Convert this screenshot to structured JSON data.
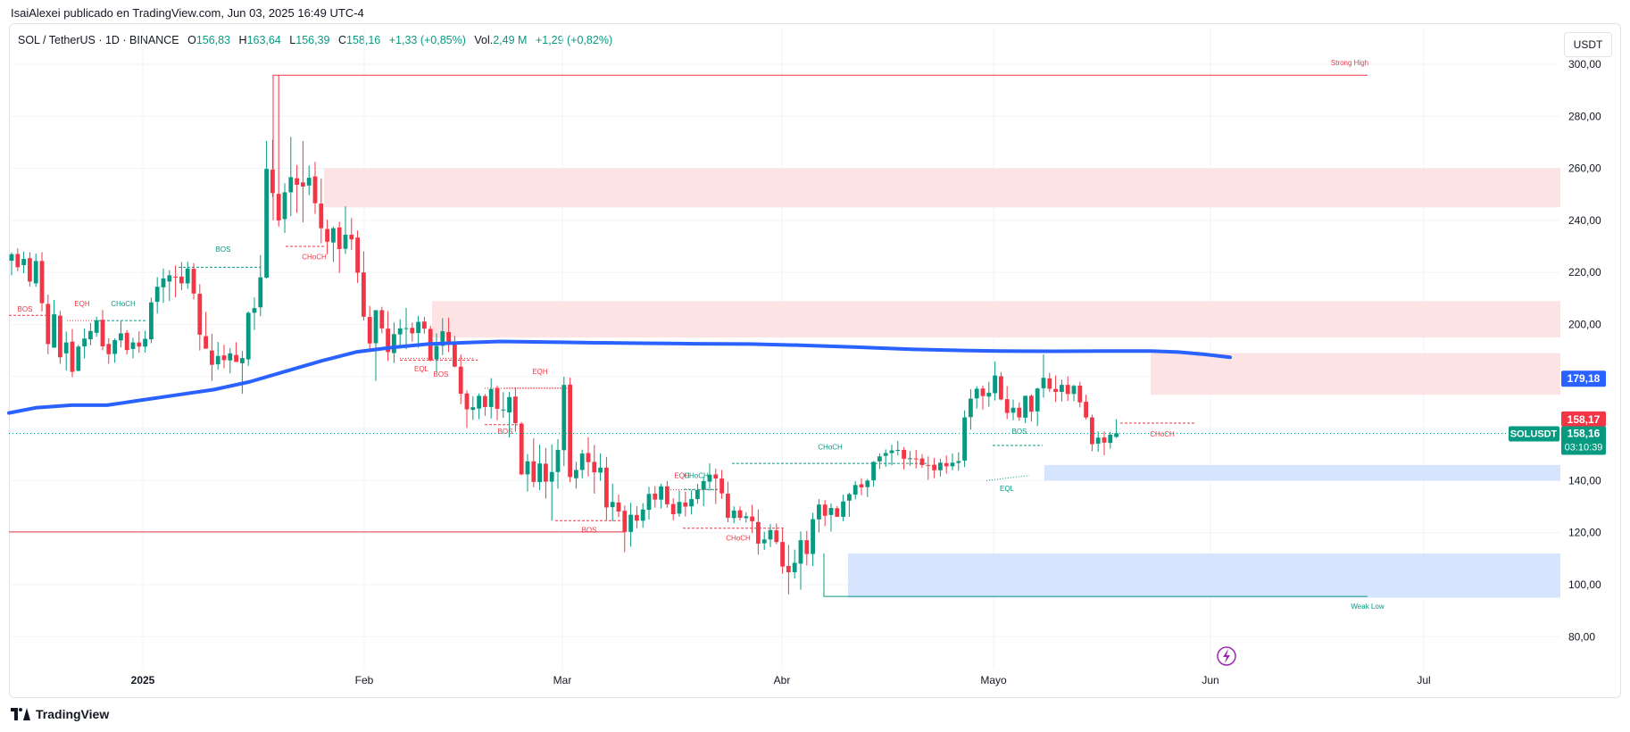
{
  "header": {
    "published": "IsaiAlexei publicado en TradingView.com, Jun 03, 2025 16:49 UTC-4"
  },
  "legend": {
    "symbol": "SOL / TetherUS · 1D · BINANCE",
    "o_label": "O",
    "o_value": "156,83",
    "h_label": "H",
    "h_value": "163,64",
    "l_label": "L",
    "l_value": "156,39",
    "c_label": "C",
    "c_value": "158,16",
    "change": "+1,33 (+0,85%)",
    "vol_label": "Vol.",
    "vol_value": "2,49 M",
    "vol_change": "+1,29 (+0,82%)"
  },
  "currency_button": "USDT",
  "brand": "TradingView",
  "colors": {
    "up": "#089981",
    "down": "#f23645",
    "ma": "#2962ff",
    "supply": "#fde3e4",
    "demand": "#d6e4fd",
    "grid": "#f0f3fa"
  },
  "chart_data": {
    "type": "candlestick",
    "title": "SOL / TetherUS · 1D · BINANCE",
    "yticks": [
      "300,00",
      "280,00",
      "260,00",
      "240,00",
      "220,00",
      "200,00",
      "180,00",
      "160,00",
      "140,00",
      "120,00",
      "100,00",
      "80,00"
    ],
    "xticks": [
      "2025",
      "Feb",
      "Mar",
      "Abr",
      "Mayo",
      "Jun",
      "Jul"
    ],
    "ylim": [
      75,
      312
    ],
    "grid": true,
    "last_price_tag": {
      "symbol": "SOLUSDT",
      "price": "158,16",
      "countdown": "03:10:39"
    },
    "ma_tag": "179,18",
    "prev_tag": "158,17",
    "zones": [
      {
        "kind": "supply",
        "from": 245,
        "to": 260
      },
      {
        "kind": "supply",
        "from": 195,
        "to": 209
      },
      {
        "kind": "supply",
        "from": 173,
        "to": 189
      },
      {
        "kind": "demand",
        "from": 140,
        "to": 146
      },
      {
        "kind": "demand",
        "from": 95,
        "to": 112
      }
    ],
    "labels": {
      "strong_high": "Strong High",
      "weak_low": "Weak Low",
      "bos": "BOS",
      "choch": "CHoCH",
      "eqh": "EQH",
      "eql": "EQL"
    },
    "candles": [
      [
        224.5,
        227.7,
        218.9,
        227.0
      ],
      [
        227.1,
        229.3,
        220.5,
        222.0
      ],
      [
        222.8,
        228.0,
        219.7,
        225.2
      ],
      [
        225.5,
        227.8,
        214.6,
        216.5
      ],
      [
        215.8,
        227.3,
        214.5,
        224.4
      ],
      [
        224.4,
        227.8,
        205.0,
        208.2
      ],
      [
        207.9,
        211.5,
        188.6,
        192.5
      ],
      [
        191.1,
        209.4,
        191.1,
        203.9
      ],
      [
        203.4,
        205.2,
        184.9,
        187.4
      ],
      [
        188.9,
        197.3,
        182.3,
        193.1
      ],
      [
        193.4,
        198.3,
        179.8,
        181.8
      ],
      [
        182.2,
        192.2,
        182.0,
        191.5
      ],
      [
        191.6,
        198.5,
        187.0,
        194.6
      ],
      [
        194.3,
        200.6,
        192.0,
        197.5
      ],
      [
        196.8,
        203.0,
        195.3,
        201.6
      ],
      [
        201.8,
        205.6,
        190.1,
        191.6
      ],
      [
        192.5,
        194.7,
        184.9,
        188.6
      ],
      [
        188.7,
        194.7,
        185.3,
        194.0
      ],
      [
        193.9,
        201.3,
        191.2,
        196.6
      ],
      [
        196.8,
        197.8,
        188.5,
        190.2
      ],
      [
        190.6,
        194.9,
        187.0,
        193.1
      ],
      [
        193.1,
        197.4,
        189.1,
        191.5
      ],
      [
        191.5,
        197.5,
        189.2,
        194.5
      ],
      [
        194.3,
        210.3,
        192.8,
        208.5
      ],
      [
        208.7,
        218.2,
        204.2,
        214.5
      ],
      [
        214.3,
        221.5,
        208.3,
        217.7
      ],
      [
        216.5,
        220.9,
        209.0,
        218.9
      ],
      [
        218.4,
        222.7,
        210.5,
        218.2
      ],
      [
        218.4,
        224.0,
        213.2,
        215.8
      ],
      [
        215.8,
        224.1,
        213.7,
        221.5
      ],
      [
        221.4,
        223.6,
        209.6,
        211.9
      ],
      [
        211.8,
        215.5,
        190.0,
        196.1
      ],
      [
        195.5,
        204.9,
        190.7,
        190.7
      ],
      [
        190.0,
        196.4,
        178.3,
        184.5
      ],
      [
        184.7,
        193.3,
        182.6,
        187.9
      ],
      [
        188.1,
        192.2,
        183.2,
        186.3
      ],
      [
        186.2,
        191.0,
        181.2,
        188.9
      ],
      [
        188.3,
        193.2,
        185.7,
        185.6
      ],
      [
        185.1,
        189.8,
        173.4,
        187.1
      ],
      [
        186.6,
        205.0,
        184.1,
        204.5
      ],
      [
        204.5,
        210.4,
        197.9,
        206.3
      ],
      [
        206.6,
        226.7,
        203.2,
        218.1
      ],
      [
        218.0,
        270.6,
        217.6,
        259.8
      ],
      [
        259.5,
        270.9,
        249.0,
        250.5
      ],
      [
        250.2,
        295.8,
        237.6,
        240.0
      ],
      [
        240.5,
        254.3,
        235.2,
        250.8
      ],
      [
        250.8,
        272.1,
        241.7,
        256.6
      ],
      [
        256.2,
        261.3,
        242.9,
        253.7
      ],
      [
        254.6,
        270.5,
        239.3,
        253.0
      ],
      [
        253.4,
        261.1,
        249.7,
        256.4
      ],
      [
        256.9,
        262.5,
        242.5,
        246.6
      ],
      [
        246.5,
        256.0,
        231.2,
        237.0
      ],
      [
        236.7,
        240.2,
        227.0,
        231.8
      ],
      [
        231.5,
        237.7,
        224.1,
        237.0
      ],
      [
        237.3,
        239.5,
        219.8,
        229.0
      ],
      [
        229.1,
        245.4,
        227.1,
        234.5
      ],
      [
        234.5,
        240.9,
        228.7,
        232.7
      ],
      [
        233.4,
        236.1,
        216.0,
        219.9
      ],
      [
        220.0,
        228.1,
        201.6,
        203.0
      ],
      [
        202.9,
        207.1,
        189.8,
        192.7
      ],
      [
        192.8,
        203.8,
        178.3,
        205.5
      ],
      [
        205.5,
        206.8,
        196.6,
        198.5
      ],
      [
        198.4,
        205.1,
        186.0,
        189.4
      ],
      [
        189.0,
        200.8,
        185.2,
        196.3
      ],
      [
        196.2,
        202.0,
        191.7,
        198.5
      ],
      [
        198.4,
        206.4,
        190.5,
        198.6
      ],
      [
        198.7,
        200.7,
        193.4,
        196.6
      ],
      [
        196.7,
        203.3,
        191.1,
        201.0
      ],
      [
        201.1,
        202.9,
        196.5,
        198.4
      ],
      [
        198.3,
        199.5,
        185.8,
        186.3
      ],
      [
        186.6,
        196.6,
        181.9,
        191.8
      ],
      [
        191.8,
        202.4,
        188.2,
        197.4
      ],
      [
        197.1,
        202.6,
        189.4,
        193.2
      ],
      [
        193.0,
        195.6,
        183.6,
        183.8
      ],
      [
        183.8,
        188.4,
        169.4,
        173.4
      ],
      [
        173.5,
        174.7,
        160.2,
        167.4
      ],
      [
        167.2,
        172.4,
        163.3,
        168.2
      ],
      [
        167.7,
        173.5,
        163.6,
        172.6
      ],
      [
        172.5,
        173.3,
        164.9,
        168.3
      ],
      [
        168.3,
        179.4,
        163.9,
        175.2
      ],
      [
        175.6,
        176.6,
        163.2,
        167.6
      ],
      [
        167.1,
        174.0,
        164.1,
        167.3
      ],
      [
        166.2,
        174.1,
        156.6,
        172.1
      ],
      [
        172.3,
        175.8,
        158.8,
        162.1
      ],
      [
        161.9,
        162.5,
        142.1,
        142.4
      ],
      [
        142.4,
        150.2,
        135.8,
        147.4
      ],
      [
        147.4,
        156.3,
        137.5,
        139.5
      ],
      [
        139.4,
        153.8,
        136.4,
        146.6
      ],
      [
        146.5,
        152.6,
        133.1,
        139.6
      ],
      [
        139.6,
        153.9,
        124.6,
        143.3
      ],
      [
        143.3,
        155.9,
        136.9,
        151.8
      ],
      [
        151.7,
        179.9,
        145.6,
        176.8
      ],
      [
        176.9,
        179.6,
        139.4,
        141.4
      ],
      [
        140.9,
        147.3,
        137.0,
        144.1
      ],
      [
        144.1,
        151.9,
        140.9,
        150.4
      ],
      [
        150.6,
        156.7,
        141.6,
        147.1
      ],
      [
        147.2,
        153.7,
        135.0,
        143.2
      ],
      [
        143.1,
        150.5,
        139.9,
        145.0
      ],
      [
        145.0,
        149.1,
        124.9,
        129.7
      ],
      [
        129.8,
        138.8,
        124.4,
        131.8
      ],
      [
        131.6,
        134.6,
        126.0,
        128.1
      ],
      [
        128.4,
        130.4,
        112.5,
        120.3
      ],
      [
        120.3,
        131.5,
        114.6,
        126.9
      ],
      [
        126.8,
        130.2,
        121.7,
        124.6
      ],
      [
        124.6,
        131.4,
        121.9,
        128.9
      ],
      [
        128.8,
        137.6,
        125.1,
        134.9
      ],
      [
        135.0,
        137.9,
        129.6,
        132.7
      ],
      [
        132.7,
        138.8,
        129.3,
        137.8
      ],
      [
        137.8,
        139.8,
        129.6,
        130.9
      ],
      [
        131.0,
        133.2,
        124.8,
        127.1
      ],
      [
        127.3,
        136.2,
        126.1,
        131.8
      ],
      [
        131.6,
        135.8,
        126.2,
        130.0
      ],
      [
        130.1,
        136.3,
        127.0,
        132.9
      ],
      [
        132.9,
        138.8,
        131.1,
        136.4
      ],
      [
        136.5,
        141.4,
        130.2,
        139.8
      ],
      [
        139.6,
        146.6,
        136.1,
        142.3
      ],
      [
        142.4,
        144.6,
        131.0,
        140.8
      ],
      [
        140.8,
        144.1,
        133.0,
        135.1
      ],
      [
        135.0,
        139.6,
        124.0,
        125.7
      ],
      [
        125.6,
        130.1,
        123.6,
        128.5
      ],
      [
        128.6,
        130.1,
        124.7,
        125.7
      ],
      [
        125.6,
        127.8,
        123.9,
        126.3
      ],
      [
        126.2,
        130.7,
        119.8,
        124.4
      ],
      [
        124.1,
        128.9,
        111.6,
        115.8
      ],
      [
        115.9,
        120.4,
        113.4,
        117.4
      ],
      [
        117.4,
        123.3,
        114.5,
        121.0
      ],
      [
        120.9,
        123.5,
        115.6,
        116.4
      ],
      [
        116.4,
        121.4,
        104.2,
        107.0
      ],
      [
        107.2,
        115.3,
        96.3,
        104.8
      ],
      [
        104.8,
        113.5,
        102.4,
        108.4
      ],
      [
        108.1,
        120.5,
        98.1,
        117.1
      ],
      [
        117.1,
        120.7,
        107.4,
        111.8
      ],
      [
        111.8,
        127.6,
        107.2,
        125.2
      ],
      [
        125.1,
        132.9,
        120.1,
        130.8
      ],
      [
        130.8,
        132.5,
        122.5,
        126.5
      ],
      [
        126.8,
        131.2,
        120.4,
        129.5
      ],
      [
        129.4,
        130.2,
        126.3,
        126.1
      ],
      [
        126.1,
        134.6,
        124.4,
        132.0
      ],
      [
        132.3,
        135.4,
        126.1,
        134.8
      ],
      [
        134.6,
        139.8,
        132.8,
        138.3
      ],
      [
        138.6,
        140.9,
        134.4,
        137.4
      ],
      [
        137.5,
        140.7,
        133.7,
        140.0
      ],
      [
        140.1,
        147.5,
        137.7,
        147.2
      ],
      [
        147.4,
        150.4,
        144.5,
        149.3
      ],
      [
        149.5,
        152.0,
        145.3,
        150.6
      ],
      [
        150.6,
        153.8,
        145.9,
        151.6
      ],
      [
        151.6,
        155.3,
        149.7,
        151.8
      ],
      [
        151.8,
        152.9,
        144.3,
        148.4
      ],
      [
        148.4,
        151.4,
        145.7,
        148.6
      ],
      [
        148.5,
        151.8,
        144.7,
        148.4
      ],
      [
        148.5,
        150.2,
        144.9,
        146.0
      ],
      [
        146.0,
        149.3,
        140.3,
        145.9
      ],
      [
        146.1,
        148.7,
        141.0,
        144.0
      ],
      [
        144.0,
        148.4,
        141.6,
        146.9
      ],
      [
        146.7,
        149.7,
        142.7,
        145.5
      ],
      [
        145.5,
        150.4,
        144.0,
        146.9
      ],
      [
        146.8,
        150.9,
        143.8,
        147.5
      ],
      [
        147.7,
        167.0,
        145.2,
        164.3
      ],
      [
        164.4,
        175.1,
        159.6,
        171.5
      ],
      [
        171.6,
        176.3,
        167.7,
        175.3
      ],
      [
        175.4,
        176.5,
        167.3,
        172.5
      ],
      [
        172.3,
        178.0,
        168.4,
        173.8
      ],
      [
        173.6,
        185.8,
        170.8,
        180.4
      ],
      [
        180.1,
        181.7,
        170.8,
        171.2
      ],
      [
        171.3,
        176.3,
        163.7,
        166.0
      ],
      [
        166.1,
        171.2,
        163.2,
        168.0
      ],
      [
        168.0,
        170.1,
        163.0,
        164.3
      ],
      [
        164.2,
        172.6,
        162.1,
        172.6
      ],
      [
        172.6,
        173.1,
        162.7,
        166.5
      ],
      [
        166.6,
        175.7,
        161.0,
        175.4
      ],
      [
        175.5,
        188.5,
        171.9,
        179.5
      ],
      [
        179.3,
        181.5,
        174.0,
        175.3
      ],
      [
        175.2,
        180.4,
        170.2,
        174.1
      ],
      [
        174.1,
        178.8,
        170.4,
        176.8
      ],
      [
        176.8,
        180.1,
        170.6,
        173.3
      ],
      [
        173.3,
        176.9,
        170.5,
        176.4
      ],
      [
        176.5,
        178.0,
        168.1,
        170.1
      ],
      [
        170.3,
        173.0,
        163.5,
        164.3
      ],
      [
        164.3,
        165.4,
        151.3,
        154.0
      ],
      [
        154.2,
        158.9,
        151.1,
        156.5
      ],
      [
        156.6,
        158.9,
        149.8,
        154.6
      ],
      [
        154.5,
        158.8,
        152.3,
        157.7
      ],
      [
        156.8,
        163.6,
        156.4,
        158.2
      ]
    ]
  }
}
